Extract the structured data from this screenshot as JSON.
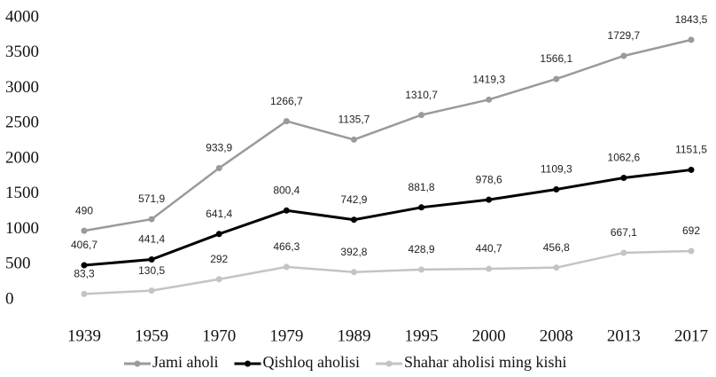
{
  "chart_data": {
    "type": "line",
    "stacked": true,
    "categories": [
      "1939",
      "1959",
      "1970",
      "1979",
      "1989",
      "1995",
      "2000",
      "2008",
      "2013",
      "2017"
    ],
    "series": [
      {
        "name": "Shahar aholisi ming kishi",
        "color": "#c4c4c4",
        "values": [
          83.3,
          130.5,
          292,
          466.3,
          392.8,
          428.9,
          440.7,
          456.8,
          667.1,
          692
        ],
        "value_labels": [
          "83,3",
          "130,5",
          "292",
          "466,3",
          "392,8",
          "428,9",
          "440,7",
          "456,8",
          "667,1",
          "692"
        ]
      },
      {
        "name": "Qishloq aholisi",
        "color": "#000000",
        "values": [
          406.7,
          441.4,
          641.4,
          800.4,
          742.9,
          881.8,
          978.6,
          1109.3,
          1062.6,
          1151.5
        ],
        "value_labels": [
          "406,7",
          "441,4",
          "641,4",
          "800,4",
          "742,9",
          "881,8",
          "978,6",
          "1109,3",
          "1062,6",
          "1151,5"
        ]
      },
      {
        "name": "Jami aholi",
        "color": "#9a9a9a",
        "values": [
          490,
          571.9,
          933.9,
          1266.7,
          1135.7,
          1310.7,
          1419.3,
          1566.1,
          1729.7,
          1843.5
        ],
        "value_labels": [
          "490",
          "571,9",
          "933,9",
          "1266,7",
          "1135,7",
          "1310,7",
          "1419,3",
          "1566,1",
          "1729,7",
          "1843,5"
        ]
      }
    ],
    "legend_order": [
      2,
      1,
      0
    ],
    "ylim": [
      0,
      4000
    ],
    "yticks": [
      0,
      500,
      1000,
      1500,
      2000,
      2500,
      3000,
      3500,
      4000
    ],
    "grid": false
  }
}
